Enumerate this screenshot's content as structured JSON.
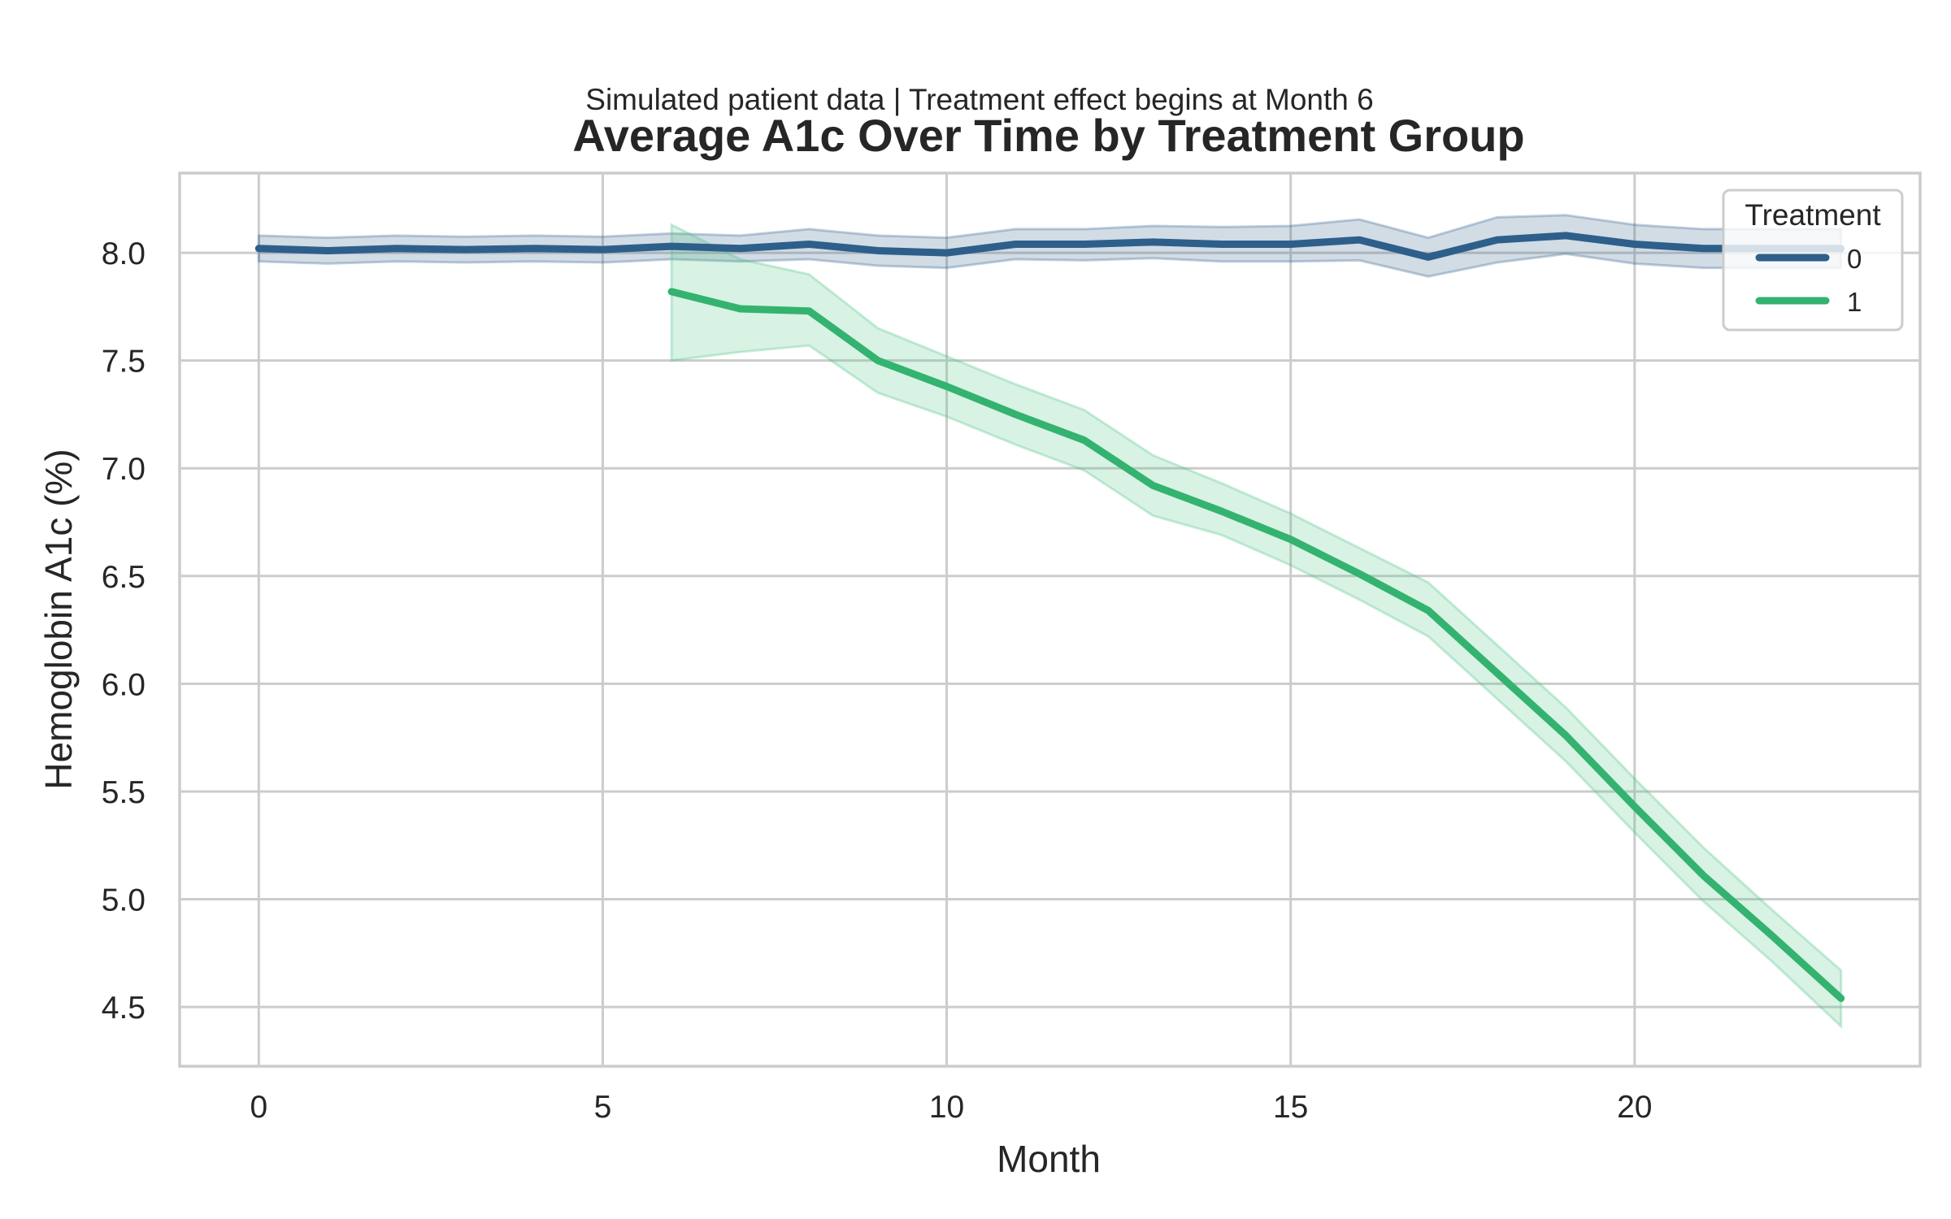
{
  "chart_data": {
    "type": "line",
    "subtitle": "Simulated patient data | Treatment effect begins at Month 6",
    "title": "Average A1c Over Time by Treatment Group",
    "xlabel": "Month",
    "ylabel": "Hemoglobin A1c (%)",
    "xlim": [
      -1.15,
      24.15
    ],
    "ylim": [
      4.225,
      8.37
    ],
    "xticks": [
      0,
      5,
      10,
      15,
      20
    ],
    "xtick_labels": [
      "0",
      "5",
      "10",
      "15",
      "20"
    ],
    "yticks": [
      4.5,
      5.0,
      5.5,
      6.0,
      6.5,
      7.0,
      7.5,
      8.0
    ],
    "ytick_labels": [
      "4.5",
      "5.0",
      "5.5",
      "6.0",
      "6.5",
      "7.0",
      "7.5",
      "8.0"
    ],
    "grid": true,
    "legend": {
      "title": "Treatment",
      "position": "top-right",
      "entries": [
        "0",
        "1"
      ]
    },
    "series": [
      {
        "name": "0",
        "color": "#2e5f8a",
        "band_color": "#2e5f8a",
        "x": [
          0,
          1,
          2,
          3,
          4,
          5,
          6,
          7,
          8,
          9,
          10,
          11,
          12,
          13,
          14,
          15,
          16,
          17,
          18,
          19,
          20,
          21,
          22,
          23
        ],
        "y": [
          8.02,
          8.01,
          8.02,
          8.015,
          8.02,
          8.015,
          8.03,
          8.02,
          8.04,
          8.01,
          8.0,
          8.04,
          8.04,
          8.05,
          8.04,
          8.04,
          8.06,
          7.98,
          8.06,
          8.08,
          8.04,
          8.02,
          8.02,
          8.02
        ],
        "ci_low": [
          7.96,
          7.95,
          7.96,
          7.955,
          7.96,
          7.955,
          7.97,
          7.96,
          7.97,
          7.94,
          7.93,
          7.97,
          7.965,
          7.975,
          7.96,
          7.96,
          7.965,
          7.89,
          7.955,
          7.995,
          7.95,
          7.93,
          7.93,
          7.93
        ],
        "ci_high": [
          8.08,
          8.07,
          8.08,
          8.075,
          8.08,
          8.075,
          8.09,
          8.08,
          8.11,
          8.08,
          8.07,
          8.11,
          8.11,
          8.125,
          8.12,
          8.125,
          8.155,
          8.07,
          8.165,
          8.175,
          8.13,
          8.11,
          8.11,
          8.11
        ]
      },
      {
        "name": "1",
        "color": "#33b36f",
        "band_color": "#4dc285",
        "x": [
          6,
          7,
          8,
          9,
          10,
          11,
          12,
          13,
          14,
          15,
          16,
          17,
          18,
          19,
          20,
          21,
          22,
          23
        ],
        "y": [
          7.82,
          7.74,
          7.73,
          7.5,
          7.38,
          7.25,
          7.13,
          6.92,
          6.8,
          6.67,
          6.51,
          6.34,
          6.05,
          5.76,
          5.43,
          5.11,
          4.83,
          4.54
        ],
        "ci_low": [
          7.5,
          7.54,
          7.57,
          7.35,
          7.24,
          7.11,
          6.99,
          6.78,
          6.69,
          6.55,
          6.39,
          6.22,
          5.93,
          5.64,
          5.31,
          4.99,
          4.71,
          4.41
        ],
        "ci_high": [
          8.13,
          7.97,
          7.9,
          7.65,
          7.52,
          7.39,
          7.27,
          7.06,
          6.93,
          6.79,
          6.63,
          6.47,
          6.18,
          5.89,
          5.56,
          5.24,
          4.95,
          4.67
        ]
      }
    ]
  }
}
